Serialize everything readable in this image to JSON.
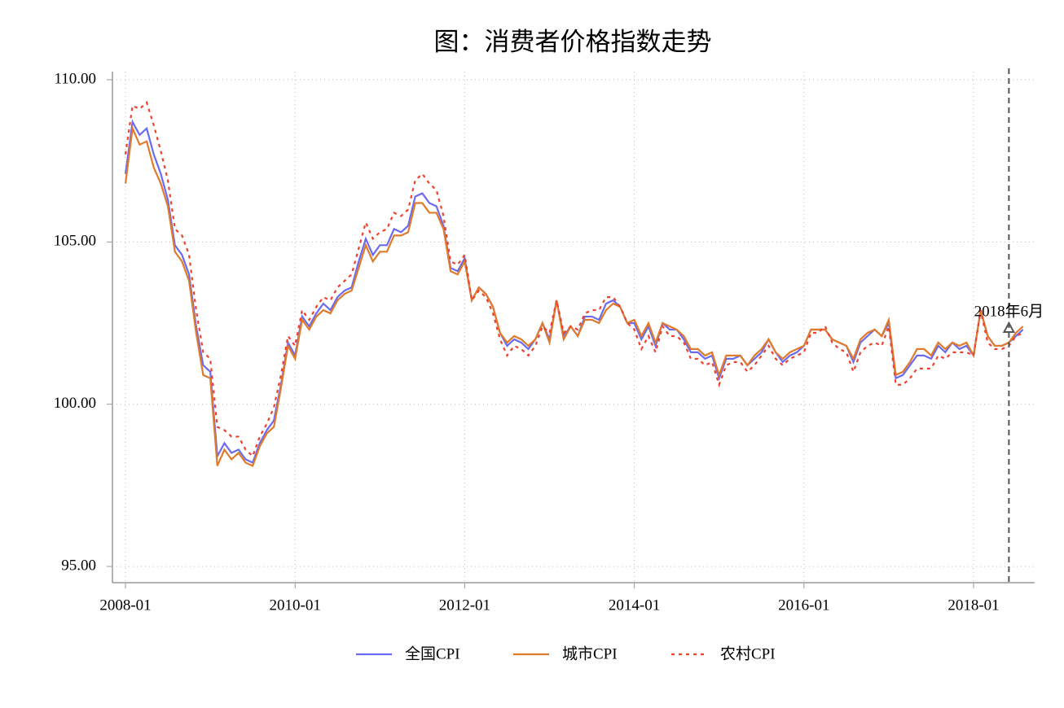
{
  "chart_data": {
    "type": "line",
    "title": "图：消费者价格指数走势",
    "x": [
      "2008-01",
      "2008-02",
      "2008-03",
      "2008-04",
      "2008-05",
      "2008-06",
      "2008-07",
      "2008-08",
      "2008-09",
      "2008-10",
      "2008-11",
      "2008-12",
      "2009-01",
      "2009-02",
      "2009-03",
      "2009-04",
      "2009-05",
      "2009-06",
      "2009-07",
      "2009-08",
      "2009-09",
      "2009-10",
      "2009-11",
      "2009-12",
      "2010-01",
      "2010-02",
      "2010-03",
      "2010-04",
      "2010-05",
      "2010-06",
      "2010-07",
      "2010-08",
      "2010-09",
      "2010-10",
      "2010-11",
      "2010-12",
      "2011-01",
      "2011-02",
      "2011-03",
      "2011-04",
      "2011-05",
      "2011-06",
      "2011-07",
      "2011-08",
      "2011-09",
      "2011-10",
      "2011-11",
      "2011-12",
      "2012-01",
      "2012-02",
      "2012-03",
      "2012-04",
      "2012-05",
      "2012-06",
      "2012-07",
      "2012-08",
      "2012-09",
      "2012-10",
      "2012-11",
      "2012-12",
      "2013-01",
      "2013-02",
      "2013-03",
      "2013-04",
      "2013-05",
      "2013-06",
      "2013-07",
      "2013-08",
      "2013-09",
      "2013-10",
      "2013-11",
      "2013-12",
      "2014-01",
      "2014-02",
      "2014-03",
      "2014-04",
      "2014-05",
      "2014-06",
      "2014-07",
      "2014-08",
      "2014-09",
      "2014-10",
      "2014-11",
      "2014-12",
      "2015-01",
      "2015-02",
      "2015-03",
      "2015-04",
      "2015-05",
      "2015-06",
      "2015-07",
      "2015-08",
      "2015-09",
      "2015-10",
      "2015-11",
      "2015-12",
      "2016-01",
      "2016-02",
      "2016-03",
      "2016-04",
      "2016-05",
      "2016-06",
      "2016-07",
      "2016-08",
      "2016-09",
      "2016-10",
      "2016-11",
      "2016-12",
      "2017-01",
      "2017-02",
      "2017-03",
      "2017-04",
      "2017-05",
      "2017-06",
      "2017-07",
      "2017-08",
      "2017-09",
      "2017-10",
      "2017-11",
      "2017-12",
      "2018-01",
      "2018-02",
      "2018-03",
      "2018-04",
      "2018-05",
      "2018-06",
      "2018-07",
      "2018-08"
    ],
    "series": [
      {
        "name": "全国CPI",
        "color": "#6b6bf2",
        "dash": "solid",
        "values": [
          107.1,
          108.7,
          108.3,
          108.5,
          107.7,
          107.1,
          106.3,
          104.9,
          104.6,
          104.0,
          102.4,
          101.2,
          101.0,
          98.4,
          98.8,
          98.5,
          98.6,
          98.3,
          98.2,
          98.8,
          99.2,
          99.5,
          100.6,
          101.9,
          101.5,
          102.7,
          102.4,
          102.8,
          103.1,
          102.9,
          103.3,
          103.5,
          103.6,
          104.4,
          105.1,
          104.6,
          104.9,
          104.9,
          105.4,
          105.3,
          105.5,
          106.4,
          106.5,
          106.2,
          106.1,
          105.5,
          104.2,
          104.1,
          104.5,
          103.2,
          103.6,
          103.4,
          103.0,
          102.2,
          101.8,
          102.0,
          101.9,
          101.7,
          102.0,
          102.5,
          102.0,
          103.2,
          102.1,
          102.4,
          102.1,
          102.7,
          102.7,
          102.6,
          103.1,
          103.2,
          103.0,
          102.5,
          102.5,
          102.0,
          102.4,
          101.8,
          102.5,
          102.3,
          102.3,
          102.0,
          101.6,
          101.6,
          101.4,
          101.5,
          100.8,
          101.4,
          101.4,
          101.5,
          101.2,
          101.4,
          101.6,
          102.0,
          101.6,
          101.3,
          101.5,
          101.6,
          101.8,
          102.3,
          102.3,
          102.3,
          102.0,
          101.9,
          101.8,
          101.3,
          101.9,
          102.1,
          102.3,
          102.1,
          102.5,
          100.8,
          100.9,
          101.2,
          101.5,
          101.5,
          101.4,
          101.8,
          101.6,
          101.9,
          101.7,
          101.8,
          101.5,
          102.9,
          102.1,
          101.8,
          101.8,
          101.9,
          102.1,
          102.3
        ]
      },
      {
        "name": "城市CPI",
        "color": "#e07b2a",
        "dash": "solid",
        "values": [
          106.8,
          108.5,
          108.0,
          108.1,
          107.3,
          106.8,
          106.1,
          104.7,
          104.4,
          103.8,
          102.2,
          100.9,
          100.8,
          98.1,
          98.6,
          98.3,
          98.5,
          98.2,
          98.1,
          98.7,
          99.1,
          99.3,
          100.5,
          101.8,
          101.4,
          102.6,
          102.3,
          102.7,
          102.9,
          102.8,
          103.2,
          103.4,
          103.5,
          104.2,
          104.9,
          104.4,
          104.7,
          104.7,
          105.2,
          105.2,
          105.3,
          106.2,
          106.2,
          105.9,
          105.9,
          105.4,
          104.1,
          104.0,
          104.4,
          103.2,
          103.6,
          103.4,
          103.0,
          102.2,
          101.9,
          102.1,
          102.0,
          101.8,
          102.0,
          102.5,
          101.9,
          103.2,
          102.0,
          102.4,
          102.1,
          102.6,
          102.6,
          102.5,
          102.9,
          103.1,
          103.0,
          102.5,
          102.6,
          102.1,
          102.5,
          101.9,
          102.5,
          102.4,
          102.3,
          102.1,
          101.7,
          101.7,
          101.5,
          101.6,
          100.9,
          101.5,
          101.5,
          101.5,
          101.2,
          101.5,
          101.7,
          102.0,
          101.6,
          101.4,
          101.6,
          101.7,
          101.8,
          102.3,
          102.3,
          102.3,
          102.0,
          101.9,
          101.8,
          101.4,
          102.0,
          102.2,
          102.3,
          102.1,
          102.6,
          100.9,
          101.0,
          101.3,
          101.7,
          101.7,
          101.5,
          101.9,
          101.7,
          101.9,
          101.8,
          101.9,
          101.5,
          102.9,
          102.1,
          101.8,
          101.8,
          101.9,
          102.2,
          102.4
        ]
      },
      {
        "name": "农村CPI",
        "color": "#f0412d",
        "dash": "dotted",
        "values": [
          107.7,
          109.2,
          109.1,
          109.3,
          108.6,
          107.8,
          106.9,
          105.4,
          105.2,
          104.6,
          102.9,
          101.6,
          101.4,
          99.3,
          99.2,
          99.0,
          99.0,
          98.6,
          98.4,
          99.0,
          99.4,
          99.9,
          100.9,
          102.1,
          101.8,
          102.9,
          102.6,
          103.0,
          103.3,
          103.2,
          103.6,
          103.8,
          104.0,
          104.8,
          105.6,
          105.1,
          105.3,
          105.4,
          105.9,
          105.8,
          106.0,
          106.9,
          107.1,
          106.8,
          106.6,
          105.8,
          104.4,
          104.3,
          104.6,
          103.2,
          103.5,
          103.3,
          102.8,
          102.0,
          101.5,
          101.8,
          101.7,
          101.5,
          101.8,
          102.4,
          102.2,
          103.2,
          102.2,
          102.4,
          102.3,
          102.8,
          102.9,
          102.9,
          103.3,
          103.3,
          103.0,
          102.5,
          102.3,
          101.7,
          102.1,
          101.6,
          102.4,
          102.1,
          102.1,
          101.9,
          101.4,
          101.4,
          101.2,
          101.3,
          100.6,
          101.2,
          101.3,
          101.3,
          101.0,
          101.2,
          101.5,
          101.8,
          101.4,
          101.2,
          101.4,
          101.5,
          101.6,
          102.2,
          102.2,
          102.4,
          101.9,
          101.7,
          101.6,
          101.0,
          101.6,
          101.8,
          101.9,
          101.8,
          102.4,
          100.6,
          100.6,
          100.8,
          101.1,
          101.1,
          101.1,
          101.5,
          101.4,
          101.6,
          101.6,
          101.6,
          101.5,
          102.9,
          101.9,
          101.7,
          101.7,
          101.8,
          102.1,
          102.2
        ]
      }
    ],
    "ylim": [
      94.5,
      110.25
    ],
    "yticks": [
      {
        "value": 95,
        "label": "95.00"
      },
      {
        "value": 100,
        "label": "100.00"
      },
      {
        "value": 105,
        "label": "105.00"
      },
      {
        "value": 110,
        "label": "110.00"
      }
    ],
    "xticks": [
      "2008-01",
      "2010-01",
      "2012-01",
      "2014-01",
      "2016-01",
      "2018-01"
    ],
    "grid": true,
    "legend": "bottom",
    "annotation": {
      "text": "2018年6月",
      "x": "2018-06",
      "y": 102.35
    }
  }
}
